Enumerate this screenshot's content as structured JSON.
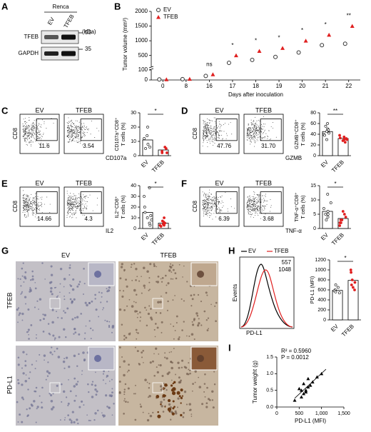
{
  "A": {
    "letter": "A",
    "cell_line": "Renca",
    "lanes": [
      "EV",
      "TFEB"
    ],
    "unit": "(kDa)",
    "bands": [
      "TFEB",
      "GAPDH"
    ],
    "markers": [
      "55",
      "35"
    ]
  },
  "B": {
    "letter": "B",
    "type": "scatter",
    "ylabel": "Tumor volume (mm³)",
    "xlabel": "Days after inoculation",
    "categories": [
      "0",
      "8",
      "16",
      "17",
      "18",
      "19",
      "20",
      "21",
      "22"
    ],
    "series": [
      {
        "name": "EV",
        "color": "#333333",
        "values": [
          5,
          8,
          40,
          250,
          350,
          450,
          600,
          850,
          900
        ]
      },
      {
        "name": "TFEB",
        "color": "#e02020",
        "values": [
          5,
          10,
          55,
          500,
          650,
          750,
          1000,
          1200,
          1500
        ]
      }
    ],
    "ylim": [
      0,
      2000
    ],
    "ybreak": [
      100,
      200
    ],
    "yticks": [
      0,
      100,
      500,
      1000,
      1500,
      2000
    ],
    "significance": [
      null,
      null,
      "ns",
      "*",
      "*",
      "*",
      "*",
      "*",
      "**"
    ]
  },
  "C": {
    "letter": "C",
    "gates": [
      {
        "title": "EV",
        "value": "11.6"
      },
      {
        "title": "TFEB",
        "value": "3.54"
      }
    ],
    "y_marker": "CD8",
    "x_marker": "CD107a",
    "bar": {
      "ylabel": [
        "CD107a⁺CD8⁺",
        "T cells (%)"
      ],
      "categories": [
        "EV",
        "TFEB"
      ],
      "values": [
        11,
        4
      ],
      "points": [
        [
          20,
          14,
          12,
          8,
          6,
          5
        ],
        [
          6,
          5,
          3,
          2,
          2
        ]
      ],
      "ylim": [
        0,
        30
      ],
      "yticks": [
        0,
        10,
        20,
        30
      ],
      "significance": "*"
    }
  },
  "D": {
    "letter": "D",
    "gates": [
      {
        "title": "EV",
        "value": "47.76"
      },
      {
        "title": "TFEB",
        "value": "31.70"
      }
    ],
    "y_marker": "CD8",
    "x_marker": "GZMB",
    "bar": {
      "ylabel": [
        "GZMB⁺CD8⁺",
        "T cells (%)"
      ],
      "categories": [
        "EV",
        "TFEB"
      ],
      "values": [
        45,
        32
      ],
      "points": [
        [
          60,
          55,
          50,
          48,
          45,
          42,
          40,
          38,
          30
        ],
        [
          38,
          35,
          33,
          32,
          30,
          30,
          28,
          25
        ]
      ],
      "ylim": [
        0,
        80
      ],
      "yticks": [
        0,
        20,
        40,
        60,
        80
      ],
      "significance": "**"
    }
  },
  "E": {
    "letter": "E",
    "gates": [
      {
        "title": "EV",
        "value": "14.66"
      },
      {
        "title": "TFEB",
        "value": "4.3"
      }
    ],
    "y_marker": "CD8",
    "x_marker": "IL2",
    "bar": {
      "ylabel": [
        "IL2⁺CD8⁺",
        "T cells (%)"
      ],
      "categories": [
        "EV",
        "TFEB"
      ],
      "values": [
        15,
        5
      ],
      "points": [
        [
          38,
          30,
          20,
          15,
          12,
          10,
          8,
          5,
          3
        ],
        [
          10,
          7,
          6,
          5,
          4,
          3,
          3,
          2
        ]
      ],
      "ylim": [
        0,
        40
      ],
      "yticks": [
        0,
        10,
        20,
        30,
        40
      ],
      "significance": "*"
    }
  },
  "F": {
    "letter": "F",
    "gates": [
      {
        "title": "EV",
        "value": "6.39"
      },
      {
        "title": "TFEB",
        "value": "3.68"
      }
    ],
    "y_marker": "CD8",
    "x_marker": "TNF-α",
    "bar": {
      "ylabel": [
        "TNF-α⁺CD8⁺",
        "T cells (%)"
      ],
      "categories": [
        "EV",
        "TFEB"
      ],
      "values": [
        6,
        3.5
      ],
      "points": [
        [
          12,
          9,
          7,
          6,
          5,
          5,
          4,
          3
        ],
        [
          6,
          5,
          4,
          3,
          3,
          2,
          2,
          1
        ]
      ],
      "ylim": [
        0,
        15
      ],
      "yticks": [
        0,
        5,
        10,
        15
      ],
      "significance": "*"
    }
  },
  "G": {
    "letter": "G",
    "columns": [
      "EV",
      "TFEB"
    ],
    "rows": [
      "TFEB",
      "PD-L1"
    ]
  },
  "H": {
    "letter": "H",
    "legend": [
      {
        "name": "EV",
        "color": "#000000"
      },
      {
        "name": "TFEB",
        "color": "#e02020"
      }
    ],
    "mfi": [
      "557",
      "1048"
    ],
    "xlabel": "PD-L1",
    "ylabel": "Events",
    "bar": {
      "ylabel": [
        "PD-L1 (MFI)"
      ],
      "categories": [
        "EV",
        "TFEB"
      ],
      "values": [
        590,
        790
      ],
      "points": [
        [
          700,
          650,
          600,
          580,
          560,
          540
        ],
        [
          1000,
          950,
          800,
          750,
          700,
          650,
          600
        ]
      ],
      "ylim": [
        0,
        1200
      ],
      "yticks": [
        0,
        200,
        400,
        600,
        800,
        1000,
        1200
      ],
      "significance": "*"
    }
  },
  "I": {
    "letter": "I",
    "type": "scatter",
    "ylabel": "Tumor weight (g)",
    "xlabel": "PD-L1 (MFI)",
    "annotations": [
      "R² = 0.5960",
      "P = 0.0012"
    ],
    "x": [
      400,
      550,
      600,
      650,
      500,
      700,
      600,
      750,
      800,
      700,
      900,
      1000,
      650,
      550
    ],
    "values": [
      0.2,
      0.3,
      0.4,
      0.45,
      0.55,
      0.6,
      0.7,
      0.65,
      0.75,
      0.85,
      0.9,
      1.0,
      0.5,
      0.5
    ],
    "xlim": [
      0,
      1500
    ],
    "ylim": [
      0,
      1.5
    ],
    "xticks": [
      0,
      500,
      {
        "value": 1000,
        "label": "1,000"
      },
      {
        "value": 1500,
        "label": "1,500"
      }
    ],
    "yticks": [
      {
        "value": 0,
        "label": "0.0"
      },
      0.5,
      {
        "value": 1,
        "label": "1.0"
      },
      1.5
    ]
  }
}
